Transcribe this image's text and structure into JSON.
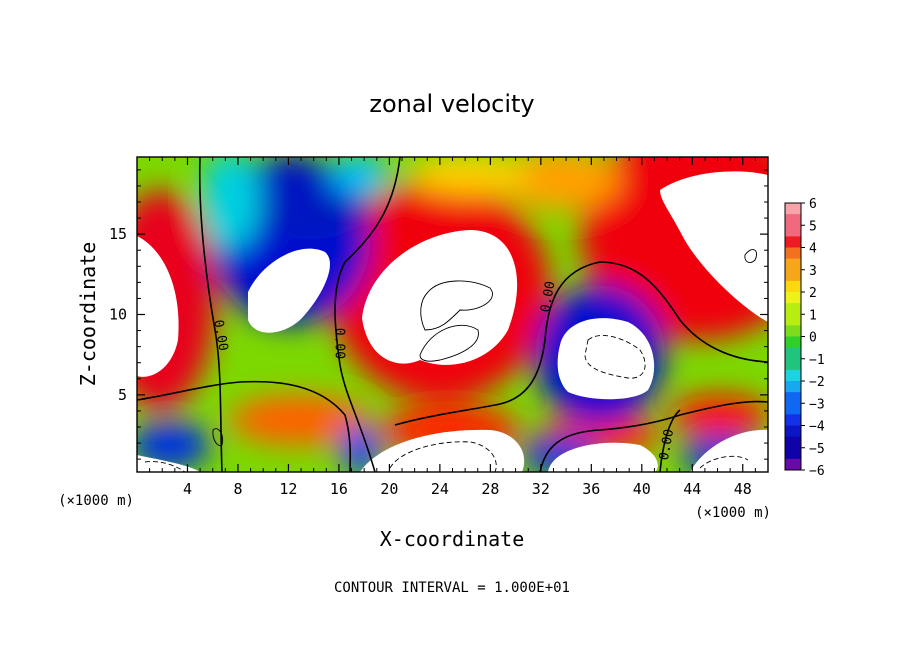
{
  "chart_data": {
    "type": "heatmap",
    "title": "zonal velocity",
    "xlabel": "X-coordinate",
    "ylabel": "Z-coordinate",
    "x_unit_left": "(×1000 m)",
    "x_unit_right": "(×1000 m)",
    "footer": "CONTOUR INTERVAL = 1.000E+01",
    "xlim": [
      0,
      50
    ],
    "ylim": [
      0.2,
      19.8
    ],
    "xticks": [
      4,
      8,
      12,
      16,
      20,
      24,
      28,
      32,
      36,
      40,
      44,
      48
    ],
    "yticks": [
      5,
      10,
      15
    ],
    "colorbar": {
      "ticks": [
        6,
        5,
        4,
        3,
        2,
        1,
        0,
        -1,
        -2,
        -3,
        -4,
        -5,
        -6
      ],
      "range": [
        -6,
        6
      ]
    },
    "contour_labels": [
      {
        "text": "0.00",
        "x": 6.6,
        "z": 8.7,
        "rotate": 80
      },
      {
        "text": "0.00",
        "x": 16.0,
        "z": 8.2,
        "rotate": 90
      },
      {
        "text": "0.00",
        "x": 32.6,
        "z": 11.1,
        "rotate": -80
      },
      {
        "text": "0.00",
        "x": 42.0,
        "z": 1.9,
        "rotate": -80
      }
    ],
    "features": [
      {
        "type": "min",
        "x": 10.5,
        "z": 10.7,
        "value": -6
      },
      {
        "type": "max",
        "x": 24.5,
        "z": 10.0,
        "value": 6
      },
      {
        "type": "min",
        "x": 36.3,
        "z": 8.0,
        "value": -6
      },
      {
        "type": "max",
        "x": 2.5,
        "z": 10.0,
        "value": 6
      },
      {
        "type": "max",
        "x": 46.0,
        "z": 14.5,
        "value": 6
      },
      {
        "type": "max",
        "x": 24.5,
        "z": 1.2,
        "value": 6
      },
      {
        "type": "max",
        "x": 38.0,
        "z": 1.0,
        "value": 6
      },
      {
        "type": "max",
        "x": 47.0,
        "z": 1.3,
        "value": 6
      }
    ]
  }
}
